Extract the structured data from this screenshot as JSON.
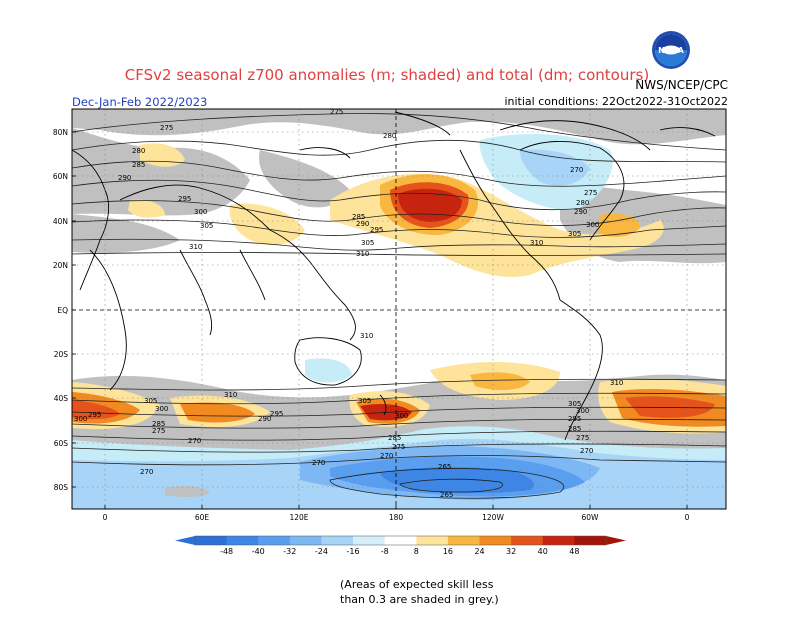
{
  "header": {
    "title": "CFSv2 seasonal z700 anomalies (m; shaded) and total (dm; contours)",
    "agency": "NWS/NCEP/CPC",
    "season": "Dec-Jan-Feb 2022/2023",
    "initial_conditions": "initial conditions: 22Oct2022-31Oct2022",
    "logo": "noaa-logo"
  },
  "map": {
    "lat_labels": [
      "80N",
      "60N",
      "40N",
      "20N",
      "EQ",
      "20S",
      "40S",
      "60S",
      "80S"
    ],
    "lon_labels": [
      "0",
      "60E",
      "120E",
      "180",
      "120W",
      "60W",
      "0"
    ],
    "contour_labels": [
      "275",
      "280",
      "285",
      "290",
      "295",
      "300",
      "305",
      "310",
      "270",
      "265"
    ]
  },
  "colorbar": {
    "ticks": [
      "-48",
      "-40",
      "-32",
      "-24",
      "-16",
      "-8",
      "8",
      "16",
      "24",
      "32",
      "40",
      "48"
    ],
    "colors": [
      "#2c6fd6",
      "#3d86e6",
      "#5a9ef0",
      "#7db8f5",
      "#a8d4f7",
      "#d6eefa",
      "#ffffff",
      "#fde49a",
      "#f9b740",
      "#f28a22",
      "#e5531a",
      "#c72410",
      "#a21408"
    ]
  },
  "footnote": {
    "line1": "(Areas of expected skill less",
    "line2": "than 0.3 are shaded in grey.)"
  }
}
